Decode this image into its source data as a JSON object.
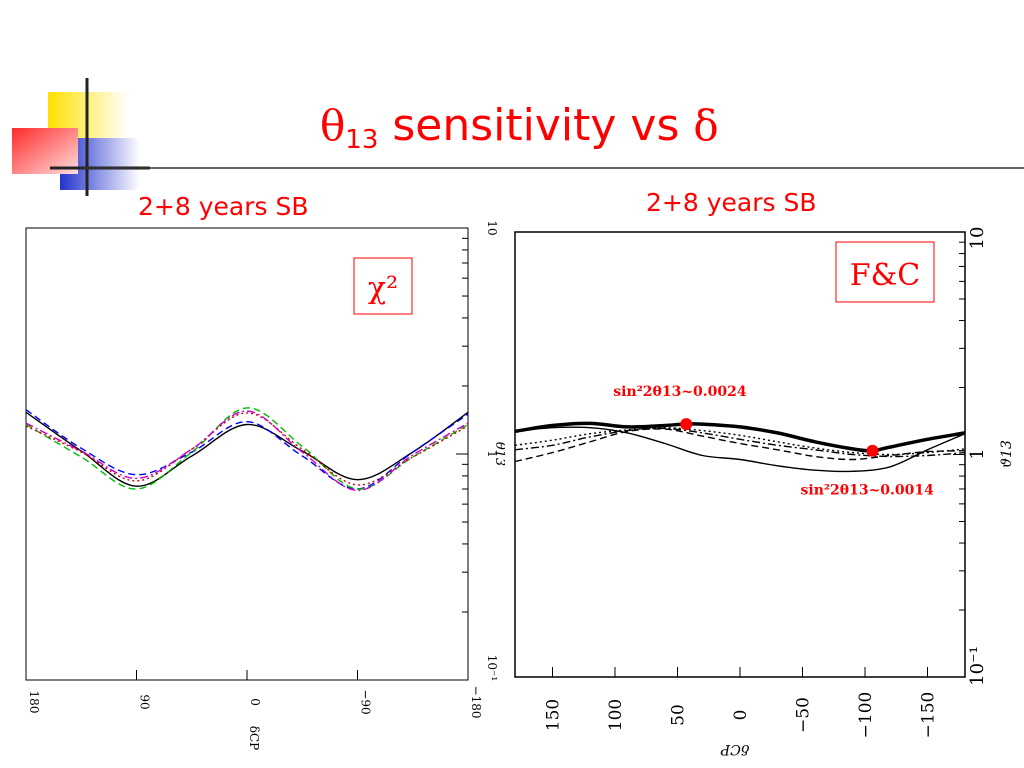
{
  "title": {
    "theta_symbol": "θ",
    "theta_subscript": "13",
    "text_middle": " sensitivity vs ",
    "delta_symbol": "δ"
  },
  "colors": {
    "accent": "#ff0000",
    "logo_yellow": "#ffe000",
    "logo_blue": "#2233cc",
    "logo_red": "#ff3333"
  },
  "chart_data": [
    {
      "type": "line",
      "title": "2+8 years SB",
      "badge": "χ²",
      "xlabel": "δCP",
      "ylabel": "θ13",
      "xscale": "linear",
      "yscale": "log",
      "xlim": [
        180,
        -180
      ],
      "ylim": [
        0.1,
        10
      ],
      "x_ticks": [
        "180",
        "90",
        "0",
        "−90",
        "−180"
      ],
      "y_ticks": [
        "10",
        "1",
        "10⁻¹"
      ],
      "grid": false,
      "legend": "none",
      "series": [
        {
          "color": "#000000",
          "style": "solid",
          "x": [
            180,
            135,
            90,
            45,
            0,
            -45,
            -90,
            -135,
            -180
          ],
          "y": [
            1.53,
            1.03,
            0.72,
            0.98,
            1.35,
            1.03,
            0.77,
            1.02,
            1.53
          ]
        },
        {
          "color": "#0000ff",
          "style": "dashed",
          "x": [
            180,
            135,
            90,
            45,
            0,
            -45,
            -90,
            -135,
            -180
          ],
          "y": [
            1.57,
            1.06,
            0.81,
            1.02,
            1.39,
            0.98,
            0.7,
            1.02,
            1.5
          ]
        },
        {
          "color": "#00bb00",
          "style": "dashed",
          "x": [
            180,
            135,
            90,
            45,
            0,
            -45,
            -90,
            -135,
            -180
          ],
          "y": [
            1.35,
            0.97,
            0.7,
            1.02,
            1.6,
            1.08,
            0.7,
            0.97,
            1.35
          ]
        },
        {
          "color": "#cc0000",
          "style": "dotted",
          "x": [
            180,
            135,
            90,
            45,
            0,
            -45,
            -90,
            -135,
            -180
          ],
          "y": [
            1.33,
            1.02,
            0.76,
            1.05,
            1.52,
            1.05,
            0.73,
            0.97,
            1.33
          ]
        },
        {
          "color": "#cc00cc",
          "style": "dash-dot",
          "x": [
            180,
            135,
            90,
            45,
            0,
            -45,
            -90,
            -135,
            -180
          ],
          "y": [
            1.37,
            1.03,
            0.78,
            1.05,
            1.55,
            1.02,
            0.69,
            0.99,
            1.37
          ]
        }
      ]
    },
    {
      "type": "line",
      "title": "2+8 years SB",
      "badge": "F&C",
      "xlabel": "δCP",
      "ylabel": "ϑ13",
      "xscale": "linear",
      "yscale": "log",
      "xlim": [
        180,
        -180
      ],
      "ylim": [
        0.1,
        10
      ],
      "x_ticks": [
        "150",
        "100",
        "50",
        "0",
        "−50",
        "−100",
        "−150"
      ],
      "y_ticks": [
        "10",
        "1",
        "10⁻¹"
      ],
      "grid": false,
      "legend": "none",
      "series": [
        {
          "color": "#000000",
          "style": "thick-solid",
          "x": [
            180,
            150,
            120,
            90,
            60,
            45,
            30,
            0,
            -30,
            -60,
            -90,
            -105,
            -120,
            -150,
            -180
          ],
          "y": [
            1.27,
            1.35,
            1.38,
            1.33,
            1.35,
            1.37,
            1.37,
            1.33,
            1.25,
            1.14,
            1.06,
            1.04,
            1.08,
            1.17,
            1.25
          ]
        },
        {
          "color": "#000000",
          "style": "solid",
          "x": [
            180,
            150,
            120,
            90,
            60,
            30,
            0,
            -30,
            -60,
            -90,
            -120,
            -150,
            -180
          ],
          "y": [
            1.27,
            1.32,
            1.32,
            1.25,
            1.12,
            0.99,
            0.95,
            0.89,
            0.85,
            0.84,
            0.88,
            1.05,
            1.24
          ]
        },
        {
          "color": "#000000",
          "style": "dashed",
          "x": [
            180,
            150,
            120,
            90,
            60,
            30,
            0,
            -30,
            -60,
            -90,
            -120,
            -150,
            -180
          ],
          "y": [
            0.93,
            1.02,
            1.14,
            1.27,
            1.3,
            1.21,
            1.12,
            1.05,
            0.98,
            0.95,
            0.99,
            1.03,
            1.04
          ]
        },
        {
          "color": "#000000",
          "style": "dash-dot",
          "x": [
            180,
            150,
            120,
            90,
            60,
            30,
            0,
            -30,
            -60,
            -90,
            -120,
            -150,
            -180
          ],
          "y": [
            1.05,
            1.1,
            1.2,
            1.28,
            1.31,
            1.25,
            1.17,
            1.1,
            1.05,
            1.0,
            0.98,
            0.99,
            1.02
          ]
        },
        {
          "color": "#000000",
          "style": "dotted",
          "x": [
            180,
            150,
            120,
            90,
            60,
            30,
            0,
            -30,
            -60,
            -90,
            -120,
            -150,
            -180
          ],
          "y": [
            1.1,
            1.16,
            1.24,
            1.29,
            1.32,
            1.28,
            1.22,
            1.14,
            1.07,
            1.02,
            1.0,
            1.02,
            1.06
          ]
        }
      ],
      "annotations": [
        {
          "x": 43,
          "y": 1.37,
          "label": "sin²2θ13~0.0024"
        },
        {
          "x": -106,
          "y": 1.04,
          "label": "sin²2θ13~0.0014"
        }
      ]
    }
  ]
}
